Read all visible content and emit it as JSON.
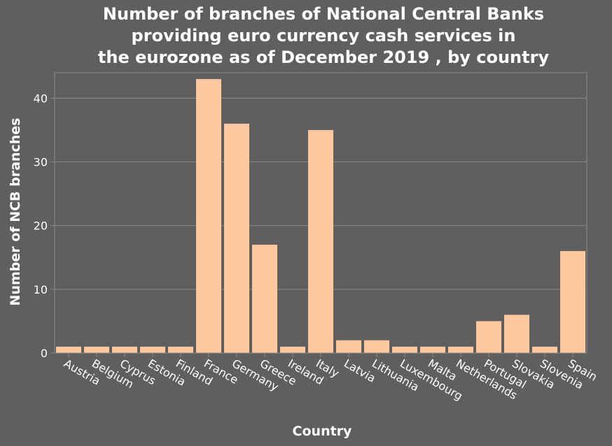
{
  "chart_data": {
    "type": "bar",
    "title_lines": [
      "Number of branches of National Central Banks",
      "providing euro currency cash services in",
      "the eurozone as of December 2019 , by country"
    ],
    "xlabel": "Country",
    "ylabel": "Number of NCB branches",
    "categories": [
      "Austria",
      "Belgium",
      "Cyprus",
      "Estonia",
      "Finland",
      "France",
      "Germany",
      "Greece",
      "Ireland",
      "Italy",
      "Latvia",
      "Lithuania",
      "Luxembourg",
      "Malta",
      "Netherlands",
      "Portugal",
      "Slovakia",
      "Slovenia",
      "Spain"
    ],
    "values": [
      1,
      1,
      1,
      1,
      1,
      43,
      36,
      17,
      1,
      35,
      2,
      2,
      1,
      1,
      1,
      5,
      6,
      1,
      16
    ],
    "yticks": [
      0,
      10,
      20,
      30,
      40
    ],
    "ylim": [
      0,
      44
    ],
    "grid": true,
    "legend": "none",
    "colors": {
      "bar": "#ffc8a0",
      "background": "#5f5f5f",
      "grid": "#8a8a8a",
      "text": "#ffffff"
    }
  }
}
